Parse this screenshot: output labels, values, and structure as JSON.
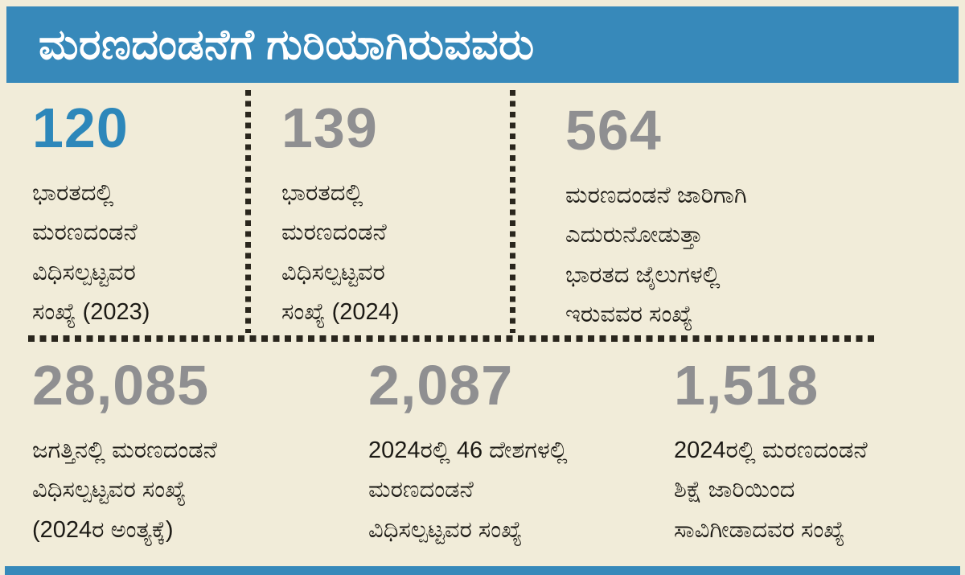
{
  "header": {
    "title": "ಮರಣದಂಡನೆಗೆ ಗುರಿಯಾಗಿರುವವರು"
  },
  "colors": {
    "header_bg": "#3789ba",
    "accent_blue": "#2d87ba",
    "number_gray": "#8f8f91",
    "background": "#f1ecd9",
    "text": "#1c1a15",
    "divider_dots": "#2a261d"
  },
  "stats": [
    {
      "value": "120",
      "description": "ಭಾರತದಲ್ಲಿ\nಮರಣದಂಡನೆ\nವಿಧಿಸಲ್ಪಟ್ಟವರ\nಸಂಖ್ಯೆ (2023)",
      "highlight": true
    },
    {
      "value": "139",
      "description": "ಭಾರತದಲ್ಲಿ\nಮರಣದಂಡನೆ\nವಿಧಿಸಲ್ಪಟ್ಟವರ\nಸಂಖ್ಯೆ (2024)",
      "highlight": false
    },
    {
      "value": "564",
      "description": "ಮರಣದಂಡನೆ ಜಾರಿಗಾಗಿ\nಎದುರುನೋಡುತ್ತಾ\nಭಾರತದ ಜೈಲುಗಳಲ್ಲಿ\nಇರುವವರ ಸಂಖ್ಯೆ",
      "highlight": false
    },
    {
      "value": "28,085",
      "description": "ಜಗತ್ತಿನಲ್ಲಿ ಮರಣದಂಡನೆ\nವಿಧಿಸಲ್ಪಟ್ಟವರ ಸಂಖ್ಯೆ\n(2024ರ ಅಂತ್ಯಕ್ಕೆ)",
      "highlight": false
    },
    {
      "value": "2,087",
      "description": "2024ರಲ್ಲಿ 46 ದೇಶಗಳಲ್ಲಿ\nಮರಣದಂಡನೆ\nವಿಧಿಸಲ್ಪಟ್ಟವರ ಸಂಖ್ಯೆ",
      "highlight": false
    },
    {
      "value": "1,518",
      "description": "2024ರಲ್ಲಿ ಮರಣದಂಡನೆ\nಶಿಕ್ಷೆ ಜಾರಿಯಿಂದ\nಸಾವಿಗೀಡಾದವರ ಸಂಖ್ಯೆ",
      "highlight": false
    }
  ],
  "chart_data": {
    "type": "table",
    "title": "ಮರಣದಂಡನೆಗೆ ಗುರಿಯಾಗಿರುವವರು",
    "rows": [
      {
        "label": "ಭಾರತದಲ್ಲಿ ಮರಣದಂಡನೆ ವಿಧಿಸಲ್ಪಟ್ಟವರ ಸಂಖ್ಯೆ (2023)",
        "value": 120
      },
      {
        "label": "ಭಾರತದಲ್ಲಿ ಮರಣದಂಡನೆ ವಿಧಿಸಲ್ಪಟ್ಟವರ ಸಂಖ್ಯೆ (2024)",
        "value": 139
      },
      {
        "label": "ಮರಣದಂಡನೆ ಜಾರಿಗಾಗಿ ಎದುರುನೋಡುತ್ತಾ ಭಾರತದ ಜೈಲುಗಳಲ್ಲಿ ಇರುವವರ ಸಂಖ್ಯೆ",
        "value": 564
      },
      {
        "label": "ಜಗತ್ತಿನಲ್ಲಿ ಮರಣದಂಡನೆ ವಿಧಿಸಲ್ಪಟ್ಟವರ ಸಂಖ್ಯೆ (2024ರ ಅಂತ್ಯಕ್ಕೆ)",
        "value": 28085
      },
      {
        "label": "2024ರಲ್ಲಿ 46 ದೇಶಗಳಲ್ಲಿ ಮರಣದಂಡನೆ ವಿಧಿಸಲ್ಪಟ್ಟವರ ಸಂಖ್ಯೆ",
        "value": 2087
      },
      {
        "label": "2024ರಲ್ಲಿ ಮರಣದಂಡನೆ ಶಿಕ್ಷೆ ಜಾರಿಯಿಂದ ಸಾವಿಗೀಡಾದವರ ಸಂಖ್ಯೆ",
        "value": 1518
      }
    ]
  }
}
